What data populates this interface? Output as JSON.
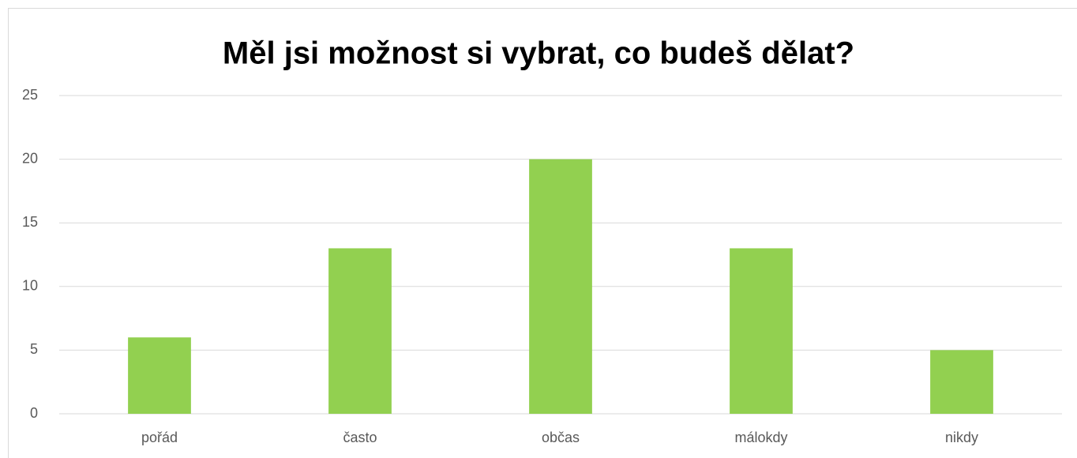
{
  "chart_data": {
    "type": "bar",
    "title": "Měl jsi možnost si vybrat, co budeš dělat?",
    "categories": [
      "pořád",
      "často",
      "občas",
      "málokdy",
      "nikdy"
    ],
    "values": [
      6,
      13,
      20,
      13,
      5
    ],
    "color": "#92d050",
    "ylim": [
      0,
      25
    ],
    "yticks": [
      0,
      5,
      10,
      15,
      20,
      25
    ],
    "grid": true
  }
}
